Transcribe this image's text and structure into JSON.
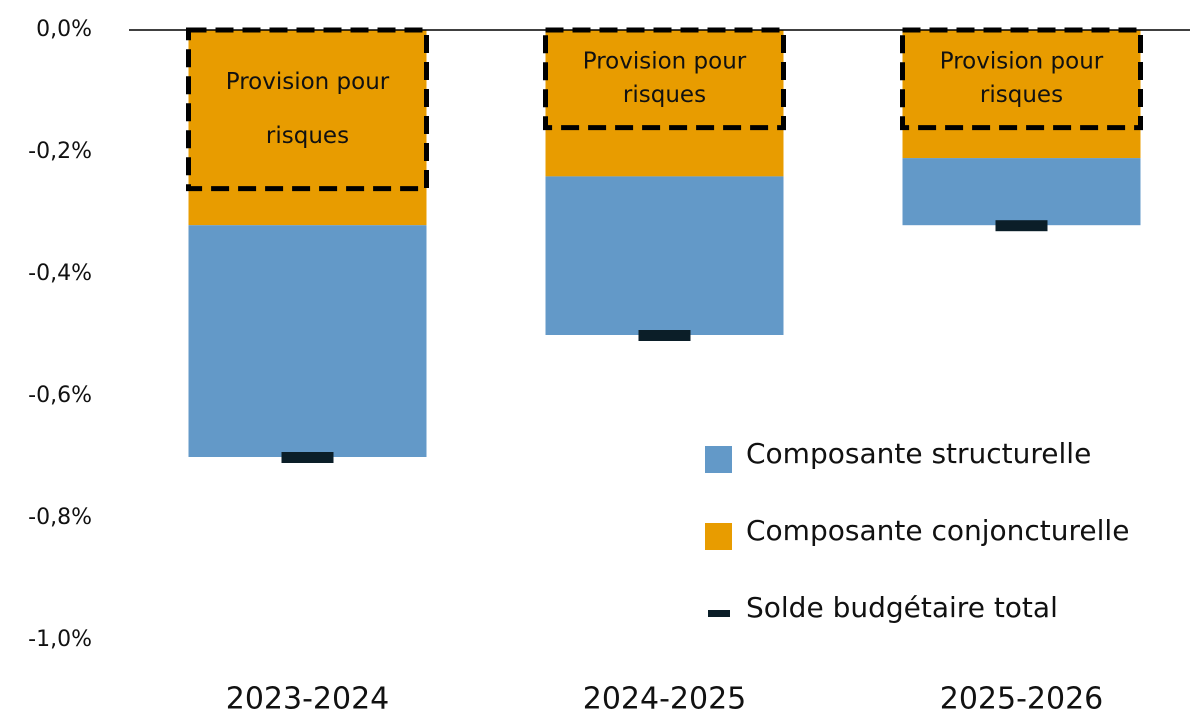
{
  "chart_data": {
    "type": "bar",
    "stacked": true,
    "categories": [
      "2023-2024",
      "2024-2025",
      "2025-2026"
    ],
    "series": [
      {
        "name": "Composante structurelle",
        "color": "#6399c8",
        "values": [
          -0.38,
          -0.26,
          -0.11
        ]
      },
      {
        "name": "Composante conjoncturelle",
        "color": "#e89c00",
        "values": [
          -0.32,
          -0.24,
          -0.21
        ]
      },
      {
        "name": "Solde budgétaire total",
        "color": "#0b1e28",
        "type": "marker",
        "values": [
          -0.7,
          -0.5,
          -0.32
        ]
      }
    ],
    "annotation": {
      "lines": [
        "Provision pour",
        "risques"
      ],
      "values": [
        -0.26,
        -0.16,
        -0.16
      ]
    },
    "ylim": [
      -1.0,
      0.0
    ],
    "yticks": [
      {
        "value": 0.0,
        "label": "0,0%"
      },
      {
        "value": -0.2,
        "label": "-0,2%"
      },
      {
        "value": -0.4,
        "label": "-0,4%"
      },
      {
        "value": -0.6,
        "label": "-0,6%"
      },
      {
        "value": -0.8,
        "label": "-0,8%"
      },
      {
        "value": -1.0,
        "label": "-1,0%"
      }
    ],
    "legend": "lower right"
  }
}
